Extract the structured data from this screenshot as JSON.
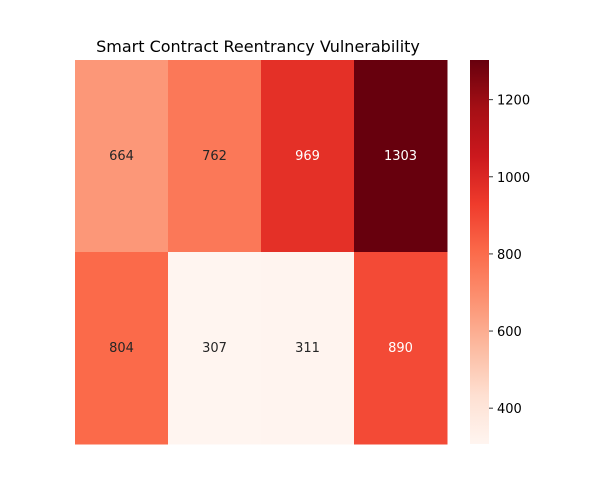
{
  "chart_data": {
    "type": "heatmap",
    "title": "Smart Contract Reentrancy Vulnerability",
    "rows": 2,
    "cols": 4,
    "values": [
      [
        664,
        762,
        969,
        1303
      ],
      [
        804,
        307,
        311,
        890
      ]
    ],
    "xlabel": "",
    "ylabel": "",
    "colormap": "Reds",
    "vmin": 307,
    "vmax": 1303,
    "colorbar_ticks": [
      400,
      600,
      800,
      1000,
      1200
    ]
  }
}
